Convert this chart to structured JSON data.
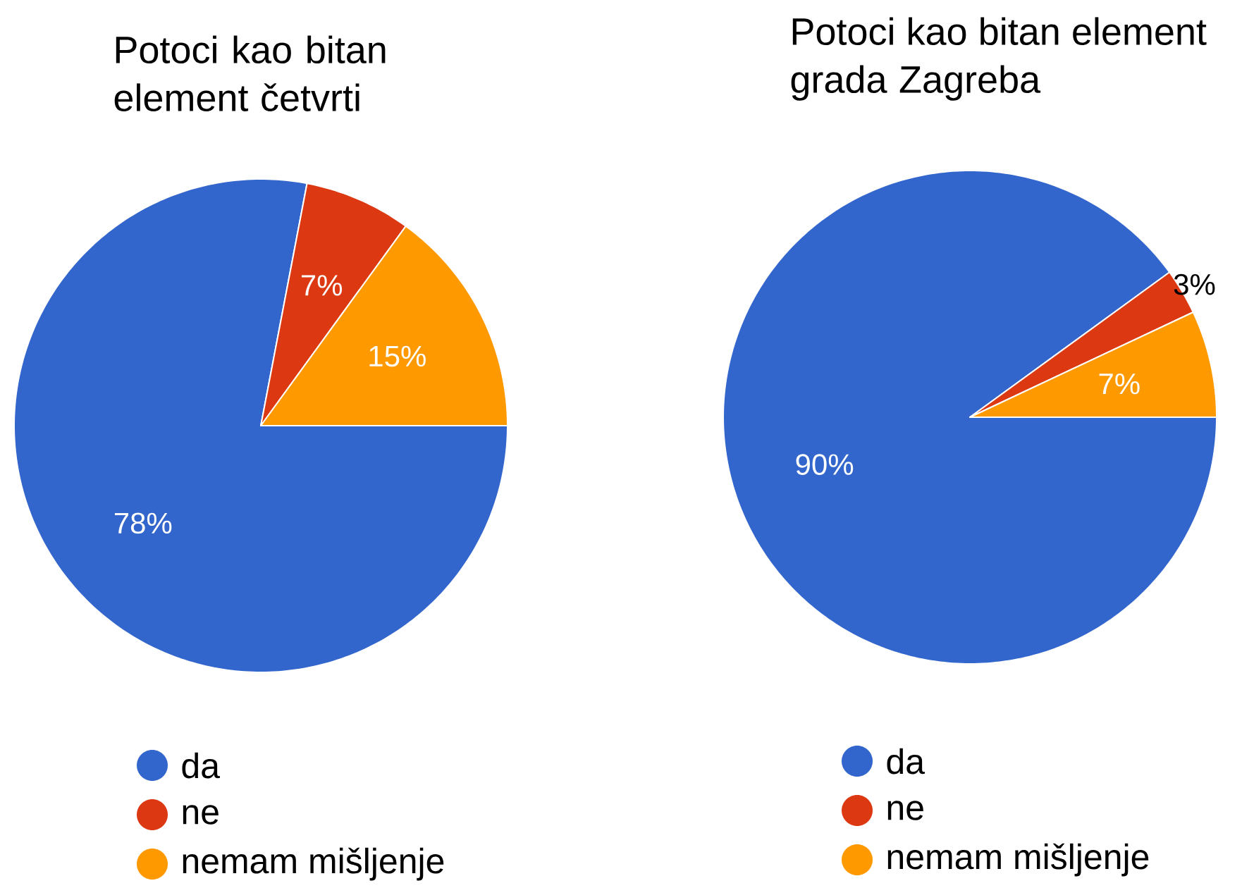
{
  "chart_data": [
    {
      "type": "pie",
      "title": "Potoci kao bitan element četvrti",
      "categories": [
        "da",
        "ne",
        "nemam mišljenje"
      ],
      "values": [
        78,
        7,
        15
      ],
      "value_labels": [
        "78%",
        "7%",
        "15%"
      ],
      "colors": [
        "#3366cc",
        "#dc3912",
        "#ff9900"
      ],
      "legend": "bottom"
    },
    {
      "type": "pie",
      "title": "Potoci kao bitan element grada Zagreba",
      "categories": [
        "da",
        "ne",
        "nemam mišljenje"
      ],
      "values": [
        90,
        3,
        7
      ],
      "value_labels": [
        "90%",
        "3%",
        "7%"
      ],
      "colors": [
        "#3366cc",
        "#dc3912",
        "#ff9900"
      ],
      "legend": "bottom"
    }
  ]
}
